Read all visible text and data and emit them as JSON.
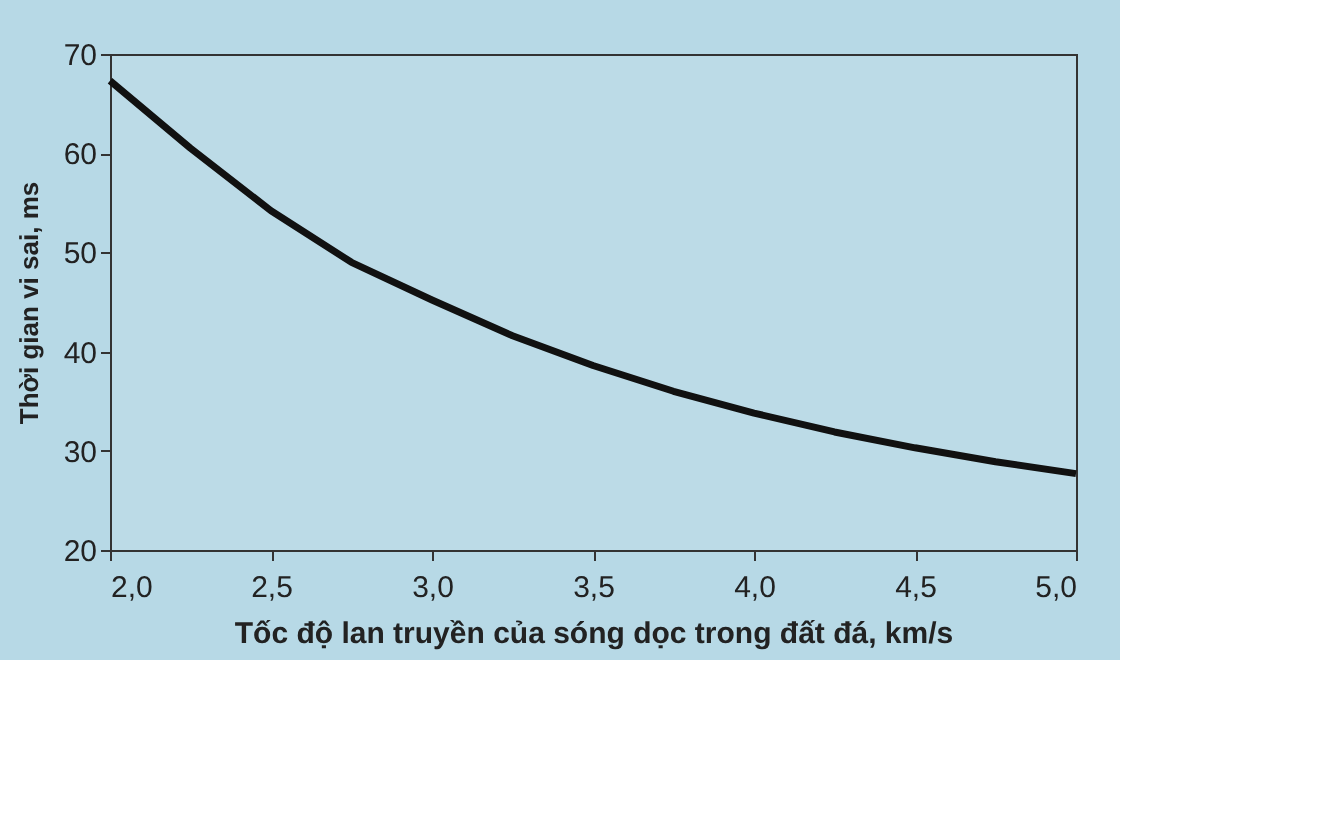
{
  "chart_data": {
    "type": "line",
    "xlabel": "Tốc độ lan truyền của sóng dọc trong đất đá, km/s",
    "ylabel": "Thời gian vi sai, ms",
    "x": [
      2.0,
      2.25,
      2.5,
      2.75,
      3.0,
      3.25,
      3.5,
      3.75,
      4.0,
      4.25,
      4.5,
      4.75,
      5.0
    ],
    "series": [
      {
        "color": "#111111",
        "values": [
          67.3,
          60.5,
          54.2,
          49.0,
          45.2,
          41.6,
          38.6,
          36.0,
          33.8,
          31.9,
          30.3,
          28.9,
          27.7
        ]
      }
    ],
    "xlim": [
      2.0,
      5.0
    ],
    "ylim": [
      20,
      70
    ],
    "xticks": [
      {
        "value": 2.0,
        "label": "2,0"
      },
      {
        "value": 2.5,
        "label": "2,5"
      },
      {
        "value": 3.0,
        "label": "3,0"
      },
      {
        "value": 3.5,
        "label": "3,5"
      },
      {
        "value": 4.0,
        "label": "4,0"
      },
      {
        "value": 4.5,
        "label": "4,5"
      },
      {
        "value": 5.0,
        "label": "5,0"
      }
    ],
    "yticks": [
      20,
      30,
      40,
      50,
      60,
      70
    ],
    "grid": false,
    "legend": false,
    "marker": "none",
    "line_style": "solid"
  }
}
